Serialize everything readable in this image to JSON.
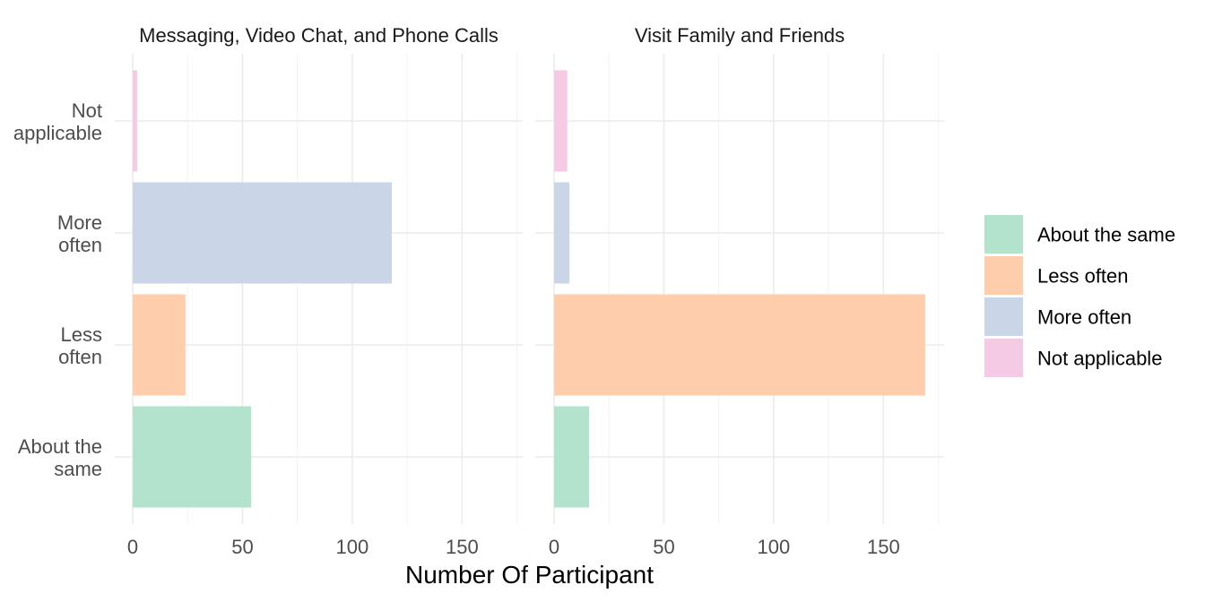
{
  "chart_data": {
    "type": "bar",
    "orientation": "horizontal",
    "categories": [
      "About the same",
      "Less often",
      "More often",
      "Not applicable"
    ],
    "category_labels": [
      [
        "About the",
        "same"
      ],
      [
        "Less",
        "often"
      ],
      [
        "More",
        "often"
      ],
      [
        "Not",
        "applicable"
      ]
    ],
    "colors": {
      "About the same": "#b3e2cd",
      "Less often": "#fdcdac",
      "More often": "#cbd5e8",
      "Not applicable": "#f4cae4"
    },
    "facets": [
      {
        "title": "Messaging, Video Chat, and Phone Calls",
        "values": [
          54,
          24,
          118,
          2
        ]
      },
      {
        "title": "Visit Family and Friends",
        "values": [
          16,
          169,
          7,
          6
        ]
      }
    ],
    "xlim": [
      0,
      176
    ],
    "x_ticks": [
      0,
      50,
      100,
      150
    ],
    "xlabel": "Number Of Participant",
    "ylabel": "",
    "grid": true,
    "legend": {
      "position": "right",
      "entries": [
        "About the same",
        "Less often",
        "More often",
        "Not applicable"
      ]
    }
  }
}
